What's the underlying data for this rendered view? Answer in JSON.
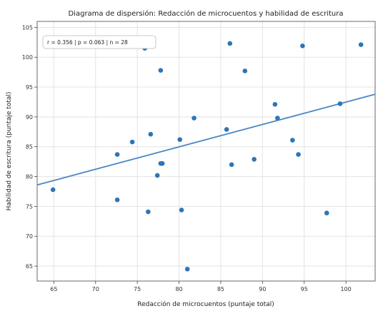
{
  "chart_data": {
    "type": "scatter",
    "title": "Diagrama de dispersión: Redacción de microcuentos y habilidad de escritura",
    "xlabel": "Redacción de microcuentos (puntaje total)",
    "ylabel": "Habilidad de escritura (puntaje total)",
    "xlim": [
      63,
      103.5
    ],
    "ylim": [
      62.5,
      106
    ],
    "xticks": [
      65,
      70,
      75,
      80,
      85,
      90,
      95,
      100
    ],
    "yticks": [
      65,
      70,
      75,
      80,
      85,
      90,
      95,
      100,
      105
    ],
    "grid": true,
    "stats_box": "r = 0.356  |  p = 0.063  |  n = 28",
    "points": [
      {
        "x": 64.9,
        "y": 77.8
      },
      {
        "x": 72.6,
        "y": 83.7
      },
      {
        "x": 72.6,
        "y": 76.1
      },
      {
        "x": 74.4,
        "y": 85.8
      },
      {
        "x": 75.9,
        "y": 101.5
      },
      {
        "x": 76.3,
        "y": 74.1
      },
      {
        "x": 76.6,
        "y": 87.1
      },
      {
        "x": 77.4,
        "y": 80.2
      },
      {
        "x": 77.8,
        "y": 82.2
      },
      {
        "x": 78.0,
        "y": 82.2
      },
      {
        "x": 77.8,
        "y": 97.8
      },
      {
        "x": 80.1,
        "y": 86.2
      },
      {
        "x": 80.3,
        "y": 74.4
      },
      {
        "x": 81.0,
        "y": 64.5
      },
      {
        "x": 81.8,
        "y": 89.8
      },
      {
        "x": 85.7,
        "y": 87.9
      },
      {
        "x": 86.1,
        "y": 102.3
      },
      {
        "x": 86.3,
        "y": 82.0
      },
      {
        "x": 87.9,
        "y": 97.7
      },
      {
        "x": 89.0,
        "y": 82.9
      },
      {
        "x": 91.5,
        "y": 92.1
      },
      {
        "x": 91.8,
        "y": 89.8
      },
      {
        "x": 93.6,
        "y": 86.1
      },
      {
        "x": 94.3,
        "y": 83.7
      },
      {
        "x": 94.8,
        "y": 101.9
      },
      {
        "x": 97.7,
        "y": 73.9
      },
      {
        "x": 99.3,
        "y": 92.2
      },
      {
        "x": 101.8,
        "y": 102.1
      }
    ],
    "fit_line": {
      "x": [
        63,
        103.5
      ],
      "y": [
        78.6,
        93.8
      ]
    },
    "colors": {
      "points": "#2e75b6",
      "fit_line": "#4a86c5"
    }
  }
}
